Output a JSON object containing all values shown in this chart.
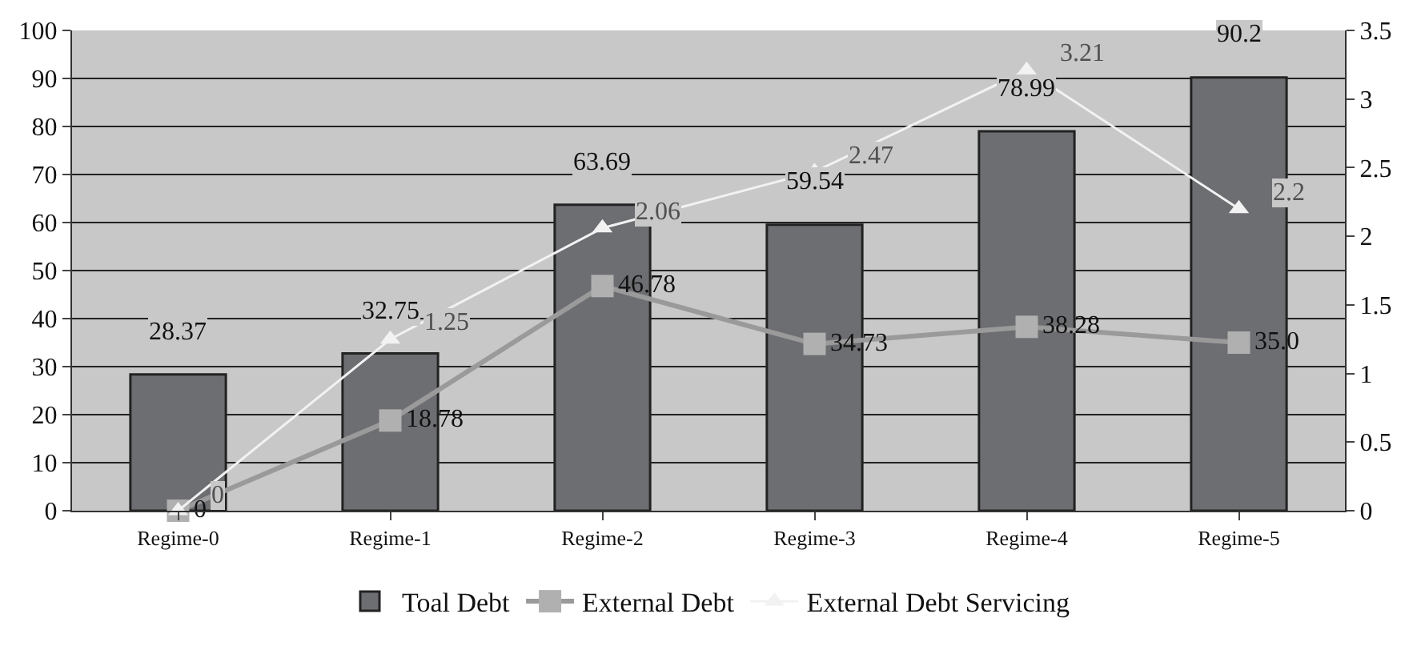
{
  "chart_data": {
    "type": "bar",
    "categories": [
      "Regime-0",
      "Regime-1",
      "Regime-2",
      "Regime-3",
      "Regime-4",
      "Regime-5"
    ],
    "series": [
      {
        "name": "Toal Debt",
        "color": "#6d6e72",
        "values": [
          28.37,
          32.75,
          63.69,
          59.54,
          78.99,
          90.2
        ],
        "value_labels": [
          "28.37",
          "32.75",
          "63.69",
          "59.54",
          "78.99",
          "90.2"
        ]
      },
      {
        "name": "External Debt",
        "type": "line",
        "color": "#9a9a9a",
        "marker": "square",
        "values": [
          0,
          18.78,
          46.78,
          34.73,
          38.28,
          35.0
        ],
        "value_labels": [
          "0",
          "18.78",
          "46.78",
          "34.73",
          "38.28",
          "35.0"
        ]
      },
      {
        "name": "External Debt Servicing",
        "type": "line",
        "axis": "y2",
        "color": "#f2f2f2",
        "marker": "triangle",
        "values": [
          0,
          1.25,
          2.06,
          2.47,
          3.21,
          2.2
        ],
        "value_labels": [
          "0",
          "1.25",
          "2.06",
          "2.47",
          "3.21",
          "2.2"
        ]
      }
    ],
    "ylim": [
      0,
      100
    ],
    "yticks": [
      0,
      10,
      20,
      30,
      40,
      50,
      60,
      70,
      80,
      90,
      100
    ],
    "y2lim": [
      0,
      3.5
    ],
    "y2ticks": [
      0,
      0.5,
      1,
      1.5,
      2,
      2.5,
      3,
      3.5
    ],
    "grid": "y",
    "legend": "bottom"
  }
}
